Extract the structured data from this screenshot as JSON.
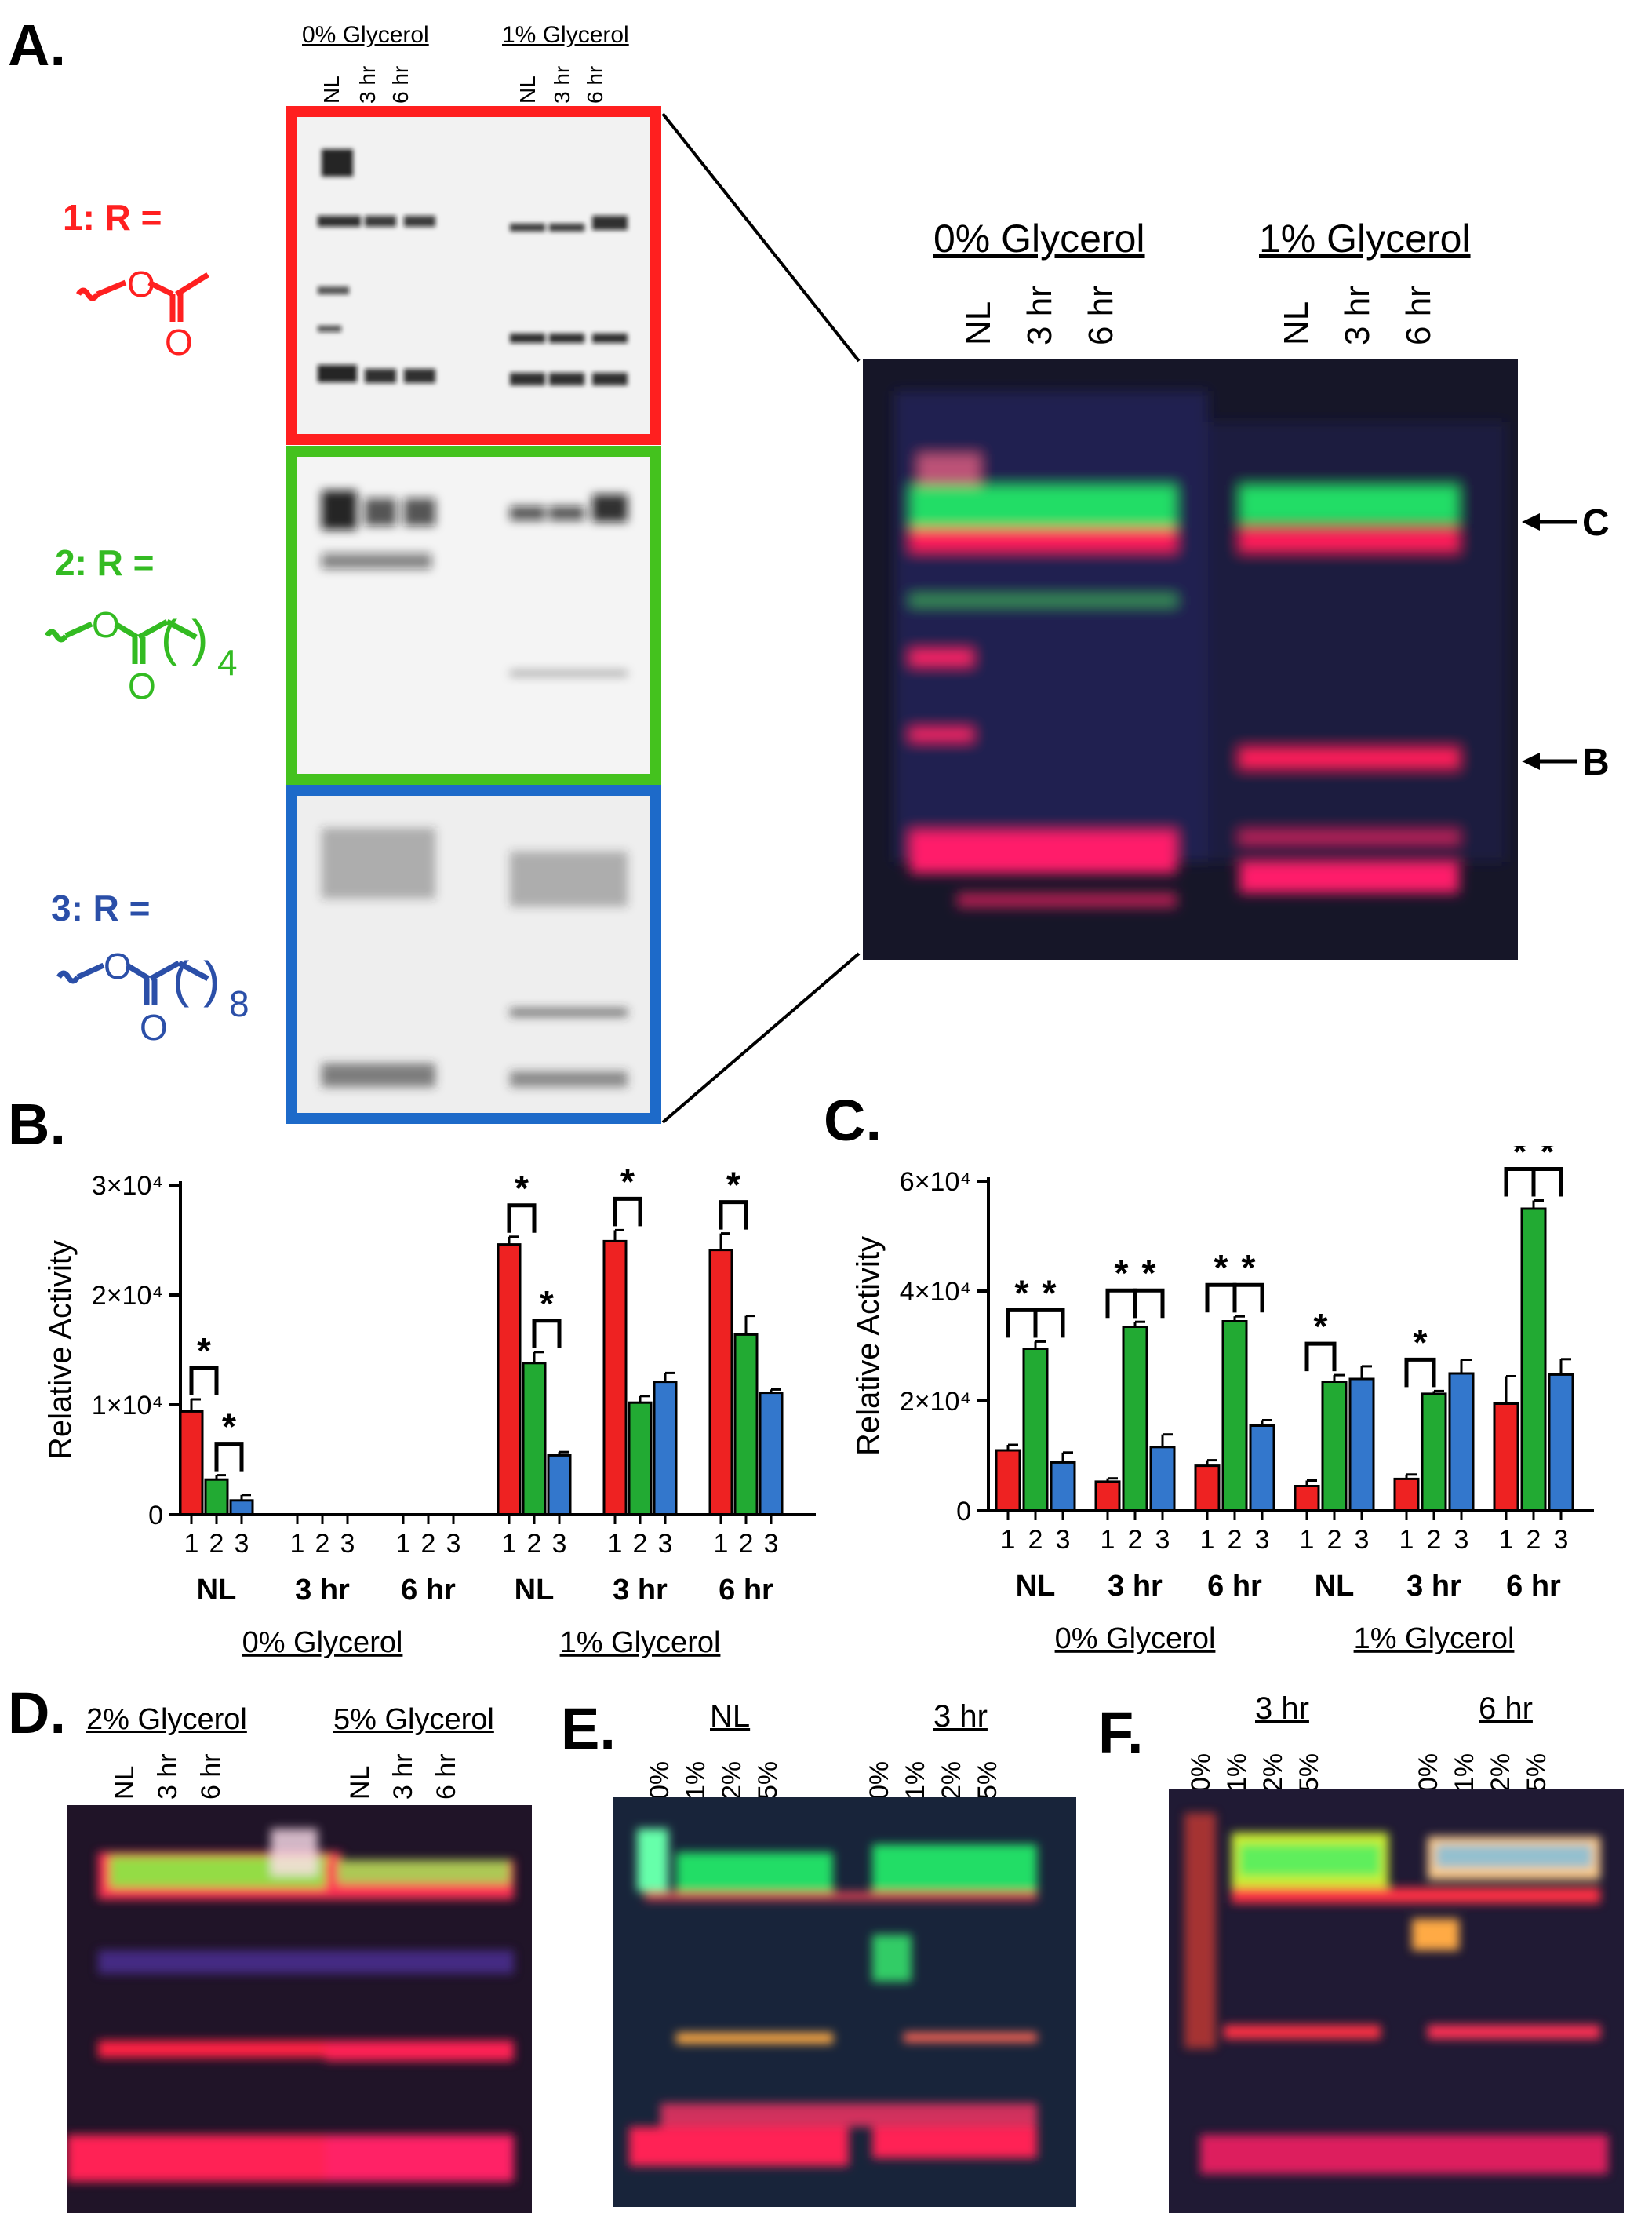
{
  "panels": {
    "a": {
      "label": "A.",
      "header_0": "0% Glycerol",
      "header_1": "1% Glycerol",
      "lanes": [
        "NL",
        "3 hr",
        "6 hr",
        "NL",
        "3 hr",
        "6 hr"
      ],
      "compounds": [
        {
          "text": "1: R =",
          "color": "#ff2020",
          "chain": "",
          "subscript": ""
        },
        {
          "text": "2: R =",
          "color": "#33bb22",
          "chain": "( )",
          "subscript": "4"
        },
        {
          "text": "3: R =",
          "color": "#2b4fa8",
          "chain": "( )",
          "subscript": "8"
        }
      ],
      "box_colors": [
        "#ff1f1f",
        "#44c21e",
        "#1d6ac9"
      ],
      "arrow_c": "C",
      "arrow_b": "B"
    },
    "b": {
      "label": "B."
    },
    "c": {
      "label": "C."
    },
    "d": {
      "label": "D.",
      "header_0": "2% Glycerol",
      "header_1": "5% Glycerol",
      "lanes": [
        "NL",
        "3 hr",
        "6 hr",
        "NL",
        "3 hr",
        "6 hr"
      ]
    },
    "e": {
      "label": "E.",
      "header_0": "NL",
      "header_1": "3 hr",
      "lanes": [
        "0%",
        "1%",
        "2%",
        "5%",
        "0%",
        "1%",
        "2%",
        "5%"
      ]
    },
    "f": {
      "label": "F.",
      "header_0": "3 hr",
      "header_1": "6 hr",
      "lanes": [
        "0%",
        "1%",
        "2%",
        "5%",
        "0%",
        "1%",
        "2%",
        "5%"
      ]
    }
  },
  "chart_data": [
    {
      "type": "bar",
      "panel": "B",
      "ylabel": "Relative Activity",
      "yticks": [
        "0",
        "1×10⁴",
        "2×10⁴",
        "3×10⁴"
      ],
      "ylim": [
        0,
        30000
      ],
      "groups": [
        "NL",
        "3 hr",
        "6 hr",
        "NL",
        "3 hr",
        "6 hr"
      ],
      "supergroups": [
        "0% Glycerol",
        "1% Glycerol"
      ],
      "series_labels": [
        "1",
        "2",
        "3"
      ],
      "colors": [
        "#ee2222",
        "#22aa33",
        "#3377cc"
      ],
      "values": [
        [
          9400,
          3200,
          1300
        ],
        [
          0,
          0,
          0
        ],
        [
          0,
          0,
          0
        ],
        [
          24600,
          13800,
          5400
        ],
        [
          24900,
          10200,
          12100
        ],
        [
          24100,
          16400,
          11100
        ]
      ],
      "errors": [
        [
          1100,
          400,
          500
        ],
        [
          0,
          0,
          0
        ],
        [
          0,
          0,
          0
        ],
        [
          700,
          1000,
          300
        ],
        [
          1000,
          600,
          800
        ],
        [
          1500,
          1700,
          300
        ]
      ],
      "significance": [
        [
          0,
          1,
          0,
          "*"
        ],
        [
          0,
          1,
          2,
          "*"
        ],
        [
          3,
          0,
          1,
          "*"
        ],
        [
          3,
          1,
          2,
          "*"
        ],
        [
          4,
          0,
          1,
          "*"
        ],
        [
          5,
          0,
          1,
          "*"
        ]
      ]
    },
    {
      "type": "bar",
      "panel": "C",
      "ylabel": "Relative Activity",
      "yticks": [
        "0",
        "2×10⁴",
        "4×10⁴",
        "6×10⁴"
      ],
      "ylim": [
        0,
        60000
      ],
      "groups": [
        "NL",
        "3 hr",
        "6 hr",
        "NL",
        "3 hr",
        "6 hr"
      ],
      "supergroups": [
        "0% Glycerol",
        "1% Glycerol"
      ],
      "series_labels": [
        "1",
        "2",
        "3"
      ],
      "colors": [
        "#ee2222",
        "#22aa33",
        "#3377cc"
      ],
      "values": [
        [
          11000,
          29500,
          8800
        ],
        [
          5300,
          33500,
          11600
        ],
        [
          8200,
          34500,
          15500
        ],
        [
          4500,
          23500,
          24000
        ],
        [
          5800,
          21300,
          25000
        ],
        [
          19500,
          55000,
          24800
        ]
      ],
      "errors": [
        [
          1000,
          1300,
          1800
        ],
        [
          600,
          900,
          2300
        ],
        [
          1000,
          900,
          1000
        ],
        [
          1000,
          1200,
          2300
        ],
        [
          800,
          500,
          2500
        ],
        [
          5000,
          1500,
          2800
        ]
      ],
      "significance": [
        [
          0,
          0,
          1,
          "*"
        ],
        [
          0,
          1,
          2,
          "*"
        ],
        [
          1,
          0,
          1,
          "*"
        ],
        [
          1,
          1,
          2,
          "*"
        ],
        [
          2,
          0,
          1,
          "*"
        ],
        [
          2,
          1,
          2,
          "*"
        ],
        [
          3,
          0,
          1,
          "*"
        ],
        [
          4,
          0,
          1,
          "*"
        ],
        [
          5,
          0,
          1,
          "*"
        ],
        [
          5,
          1,
          2,
          "*"
        ]
      ]
    }
  ]
}
